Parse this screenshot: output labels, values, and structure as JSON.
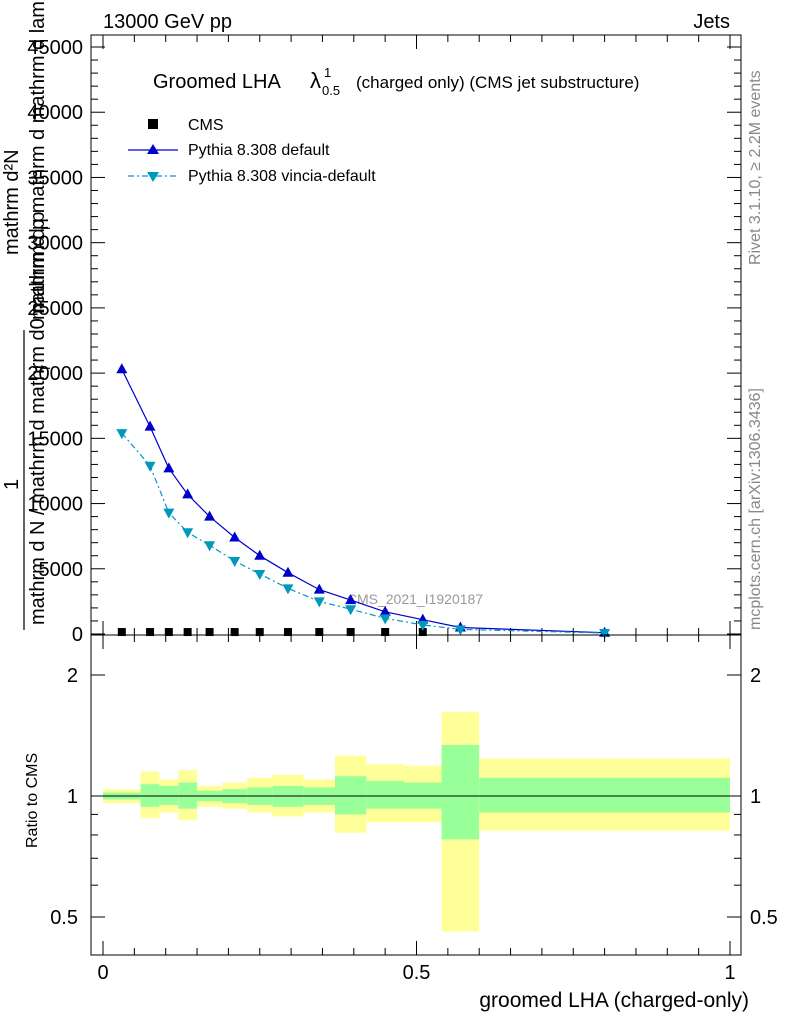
{
  "header": {
    "left": "13000 GeV pp",
    "right": "Jets"
  },
  "side_labels": {
    "rivet": "Rivet 3.1.10, ≥ 2.2M events",
    "mcplots": "mcplots.cern.ch [arXiv:1306.3436]"
  },
  "chart_data": [
    {
      "type": "line",
      "title": "Groomed LHA",
      "title_symbol": "λ",
      "title_sup": "1",
      "title_sub": "0.5",
      "title_suffix": "(charged only) (CMS jet substructure)",
      "ylabel_lines": [
        "1",
        "mathrm d N / mathrm d mathrm d0 mathrm d p",
        "mathrm d²N",
        "mathrm d p mathrm d mathrm d lambda",
        "T",
        "T"
      ],
      "watermark": "CMS_2021_I1920187",
      "xlim": [
        0,
        1
      ],
      "ylim": [
        0,
        45000
      ],
      "y_ticks": [
        "0",
        "5000",
        "10000",
        "15000",
        "20000",
        "25000",
        "30000",
        "35000",
        "40000",
        "45000"
      ],
      "legend_position": "top-left",
      "series": [
        {
          "name": "CMS",
          "marker": "square",
          "color": "#000000",
          "x": [
            0.03,
            0.075,
            0.105,
            0.135,
            0.17,
            0.21,
            0.25,
            0.295,
            0.345,
            0.395,
            0.45,
            0.51
          ],
          "y": [
            150,
            150,
            150,
            150,
            150,
            150,
            150,
            150,
            150,
            150,
            150,
            150
          ]
        },
        {
          "name": "Pythia 8.308 default",
          "marker": "triangle-up",
          "color": "#0000cc",
          "dash": "solid",
          "x": [
            0.03,
            0.075,
            0.105,
            0.135,
            0.17,
            0.21,
            0.25,
            0.295,
            0.345,
            0.395,
            0.45,
            0.51,
            0.57,
            0.8
          ],
          "y": [
            20300,
            15900,
            12700,
            10700,
            9000,
            7400,
            6000,
            4700,
            3400,
            2600,
            1700,
            1100,
            500,
            100
          ]
        },
        {
          "name": "Pythia 8.308 vincia-default",
          "marker": "triangle-down",
          "color": "#0099bb",
          "dash": "dashdot",
          "x": [
            0.03,
            0.075,
            0.105,
            0.135,
            0.17,
            0.21,
            0.25,
            0.295,
            0.345,
            0.395,
            0.45,
            0.51,
            0.57,
            0.8
          ],
          "y": [
            15400,
            12900,
            9300,
            7800,
            6800,
            5600,
            4600,
            3500,
            2500,
            1900,
            1200,
            700,
            350,
            80
          ]
        }
      ]
    },
    {
      "type": "area",
      "ylabel": "Ratio to CMS",
      "xlabel": "groomed LHA (charged-only)",
      "xlim": [
        0,
        1
      ],
      "ylim": [
        0.4,
        2.3
      ],
      "y_ticks": [
        "0.5",
        "1",
        "2"
      ],
      "x_ticks": [
        "0",
        "0.5",
        "1"
      ],
      "reference_value": 1,
      "band_colors": {
        "inner": "#99ff99",
        "outer": "#ffff99"
      },
      "bins": [
        {
          "x": [
            0.0,
            0.06
          ],
          "inner": [
            0.98,
            1.02
          ],
          "outer": [
            0.96,
            1.04
          ]
        },
        {
          "x": [
            0.06,
            0.09
          ],
          "inner": [
            0.94,
            1.07
          ],
          "outer": [
            0.88,
            1.15
          ]
        },
        {
          "x": [
            0.09,
            0.12
          ],
          "inner": [
            0.95,
            1.06
          ],
          "outer": [
            0.91,
            1.1
          ]
        },
        {
          "x": [
            0.12,
            0.15
          ],
          "inner": [
            0.93,
            1.08
          ],
          "outer": [
            0.87,
            1.16
          ]
        },
        {
          "x": [
            0.15,
            0.19
          ],
          "inner": [
            0.97,
            1.03
          ],
          "outer": [
            0.94,
            1.06
          ]
        },
        {
          "x": [
            0.19,
            0.23
          ],
          "inner": [
            0.96,
            1.04
          ],
          "outer": [
            0.93,
            1.08
          ]
        },
        {
          "x": [
            0.23,
            0.27
          ],
          "inner": [
            0.95,
            1.05
          ],
          "outer": [
            0.91,
            1.11
          ]
        },
        {
          "x": [
            0.27,
            0.32
          ],
          "inner": [
            0.94,
            1.06
          ],
          "outer": [
            0.89,
            1.13
          ]
        },
        {
          "x": [
            0.32,
            0.37
          ],
          "inner": [
            0.95,
            1.05
          ],
          "outer": [
            0.91,
            1.1
          ]
        },
        {
          "x": [
            0.37,
            0.42
          ],
          "inner": [
            0.9,
            1.12
          ],
          "outer": [
            0.81,
            1.26
          ]
        },
        {
          "x": [
            0.42,
            0.48
          ],
          "inner": [
            0.93,
            1.09
          ],
          "outer": [
            0.86,
            1.2
          ]
        },
        {
          "x": [
            0.48,
            0.54
          ],
          "inner": [
            0.93,
            1.08
          ],
          "outer": [
            0.86,
            1.19
          ]
        },
        {
          "x": [
            0.54,
            0.6
          ],
          "inner": [
            0.78,
            1.34
          ],
          "outer": [
            0.46,
            1.62
          ]
        },
        {
          "x": [
            0.6,
            1.0
          ],
          "inner": [
            0.91,
            1.11
          ],
          "outer": [
            0.82,
            1.24
          ]
        }
      ]
    }
  ]
}
